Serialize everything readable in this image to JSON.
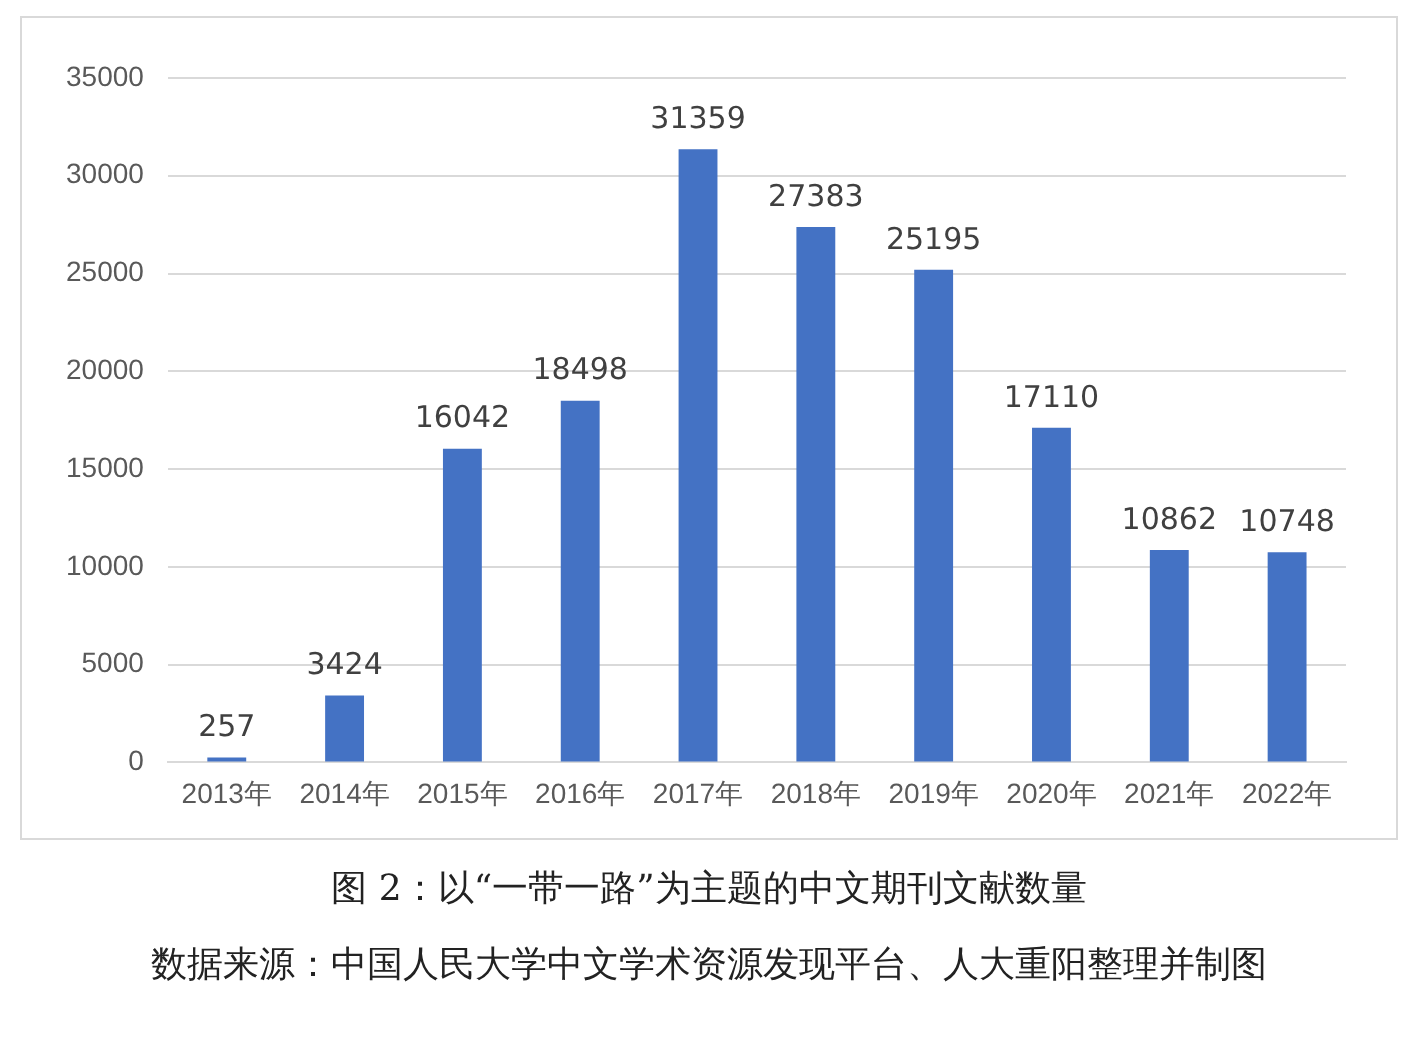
{
  "chart_data": {
    "type": "bar",
    "title": "图 2：以“一带一路”为主题的中文期刊文献数量",
    "categories": [
      "2013年",
      "2014年",
      "2015年",
      "2016年",
      "2017年",
      "2018年",
      "2019年",
      "2020年",
      "2021年",
      "2022年"
    ],
    "values": [
      257,
      3424,
      16042,
      18498,
      31359,
      27383,
      25195,
      17110,
      10862,
      10748
    ],
    "color": "#4472c4",
    "ylim": [
      0,
      35000
    ],
    "yticks": [
      0,
      5000,
      10000,
      15000,
      20000,
      25000,
      30000,
      35000
    ],
    "grid": "y",
    "data_labels": true,
    "annotations": [
      "数据来源：中国人民大学中文学术资源发现平台、人大重阳整理并制图"
    ]
  }
}
